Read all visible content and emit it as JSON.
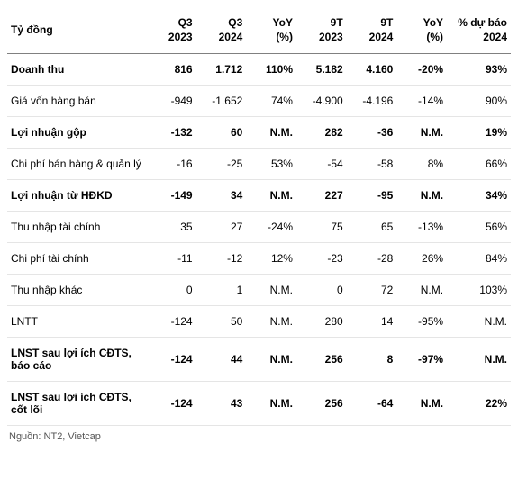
{
  "source": "Nguồn: NT2, Vietcap",
  "columns": [
    {
      "l1": "Tỷ đồng",
      "l2": ""
    },
    {
      "l1": "Q3",
      "l2": "2023"
    },
    {
      "l1": "Q3",
      "l2": "2024"
    },
    {
      "l1": "YoY",
      "l2": "(%)"
    },
    {
      "l1": "9T",
      "l2": "2023"
    },
    {
      "l1": "9T",
      "l2": "2024"
    },
    {
      "l1": "YoY",
      "l2": "(%)"
    },
    {
      "l1": "% dự báo",
      "l2": "2024"
    }
  ],
  "rows": [
    {
      "bold": true,
      "c": [
        "Doanh thu",
        "816",
        "1.712",
        "110%",
        "5.182",
        "4.160",
        "-20%",
        "93%"
      ]
    },
    {
      "bold": false,
      "c": [
        "Giá vốn hàng bán",
        "-949",
        "-1.652",
        "74%",
        "-4.900",
        "-4.196",
        "-14%",
        "90%"
      ]
    },
    {
      "bold": true,
      "c": [
        "Lợi nhuận gộp",
        "-132",
        "60",
        "N.M.",
        "282",
        "-36",
        "N.M.",
        "19%"
      ]
    },
    {
      "bold": false,
      "c": [
        "Chi phí bán hàng & quản lý",
        "-16",
        "-25",
        "53%",
        "-54",
        "-58",
        "8%",
        "66%"
      ]
    },
    {
      "bold": true,
      "c": [
        "Lợi nhuận từ HĐKD",
        "-149",
        "34",
        "N.M.",
        "227",
        "-95",
        "N.M.",
        "34%"
      ]
    },
    {
      "bold": false,
      "c": [
        "Thu nhập tài chính",
        "35",
        "27",
        "-24%",
        "75",
        "65",
        "-13%",
        "56%"
      ]
    },
    {
      "bold": false,
      "c": [
        "Chi phí tài chính",
        "-11",
        "-12",
        "12%",
        "-23",
        "-28",
        "26%",
        "84%"
      ]
    },
    {
      "bold": false,
      "c": [
        "Thu nhập khác",
        "0",
        "1",
        "N.M.",
        "0",
        "72",
        "N.M.",
        "103%"
      ]
    },
    {
      "bold": false,
      "c": [
        "LNTT",
        "-124",
        "50",
        "N.M.",
        "280",
        "14",
        "-95%",
        "N.M."
      ]
    },
    {
      "bold": true,
      "c": [
        "LNST sau lợi ích CĐTS, báo cáo",
        "-124",
        "44",
        "N.M.",
        "256",
        "8",
        "-97%",
        "N.M."
      ]
    },
    {
      "bold": true,
      "c": [
        "LNST sau lợi ích CĐTS, cốt lõi",
        "-124",
        "43",
        "N.M.",
        "256",
        "-64",
        "N.M.",
        "22%"
      ]
    }
  ],
  "style": {
    "header_border_color": "#808080",
    "row_border_color": "#e5e5e5",
    "font_family": "Arial",
    "header_fontsize": 12,
    "cell_fontsize": 12,
    "bg": "#ffffff",
    "text": "#000000",
    "source_color": "#555555"
  }
}
